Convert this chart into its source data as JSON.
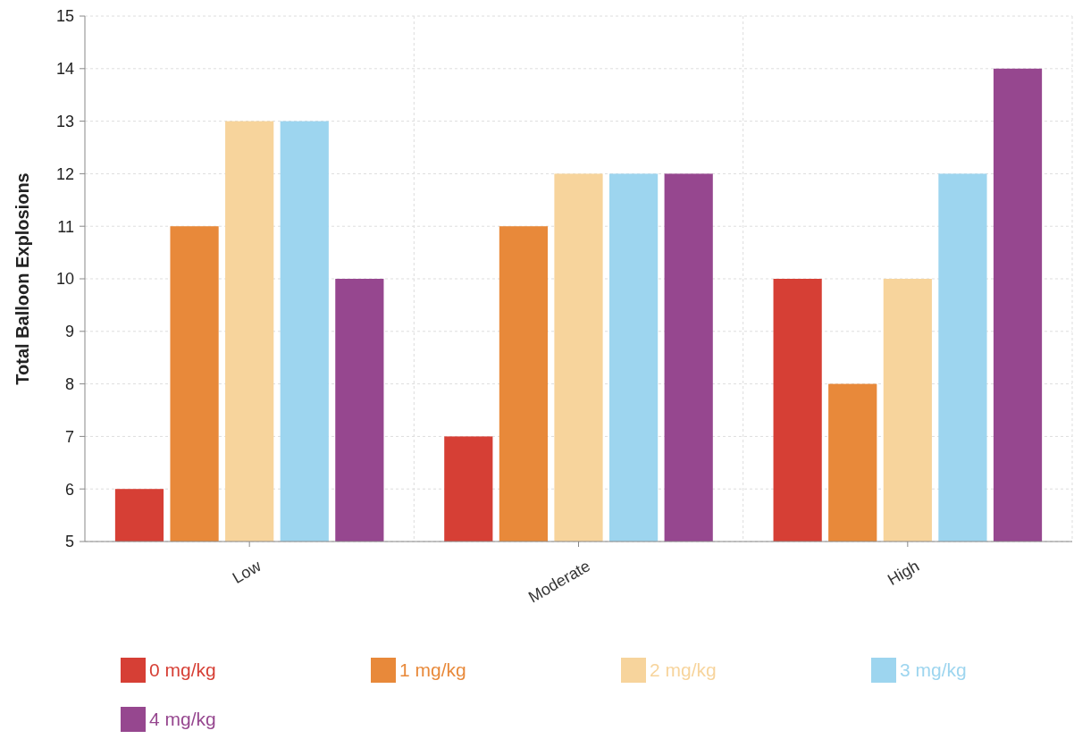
{
  "chart_data": {
    "type": "bar",
    "ylabel": "Total Balloon Explosions",
    "categories": [
      "Low",
      "Moderate",
      "High"
    ],
    "series": [
      {
        "name": "0 mg/kg",
        "color": "#d63f35",
        "values": [
          6,
          7,
          10
        ]
      },
      {
        "name": "1 mg/kg",
        "color": "#e8893a",
        "values": [
          11,
          11,
          8
        ]
      },
      {
        "name": "2 mg/kg",
        "color": "#f7d49c",
        "values": [
          13,
          12,
          10
        ]
      },
      {
        "name": "3 mg/kg",
        "color": "#9dd5ef",
        "values": [
          13,
          12,
          12
        ]
      },
      {
        "name": "4 mg/kg",
        "color": "#96478f",
        "values": [
          10,
          12,
          14
        ]
      }
    ],
    "ylim": [
      5,
      15
    ],
    "yticks": [
      5,
      6,
      7,
      8,
      9,
      10,
      11,
      12,
      13,
      14,
      15
    ],
    "grid": true,
    "legend": "bottom"
  }
}
